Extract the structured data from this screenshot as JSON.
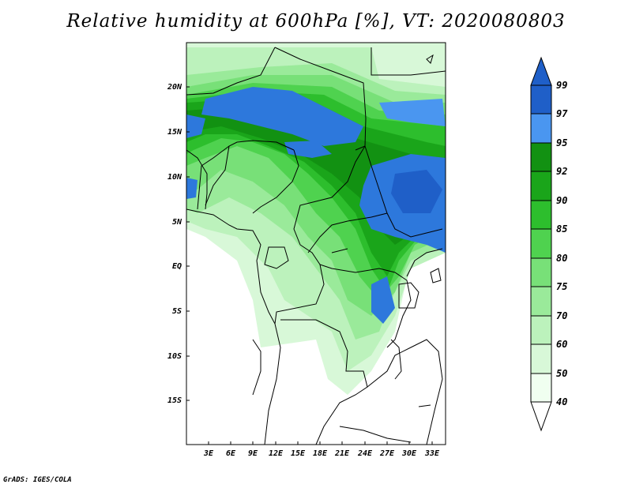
{
  "title": "Relative humidity at 600hPa [%], VT: 2020080803",
  "credit": "GrADS: IGES/COLA",
  "map": {
    "lat_labels": [
      "20N",
      "15N",
      "10N",
      "5N",
      "EQ",
      "5S",
      "10S",
      "15S"
    ],
    "lon_labels": [
      "3E",
      "6E",
      "9E",
      "12E",
      "15E",
      "18E",
      "21E",
      "24E",
      "27E",
      "30E",
      "33E"
    ]
  },
  "colorbar": {
    "levels": [
      "99",
      "97",
      "95",
      "92",
      "90",
      "85",
      "80",
      "75",
      "70",
      "60",
      "50",
      "40"
    ],
    "colors": [
      "#1f5fc8",
      "#2d78dc",
      "#4a96f0",
      "#129112",
      "#1aa51a",
      "#2dbe2d",
      "#4fd24f",
      "#78e078",
      "#9aea9a",
      "#bcf2bc",
      "#d8f8d8",
      "#f0fff0",
      "#ffffff"
    ]
  }
}
